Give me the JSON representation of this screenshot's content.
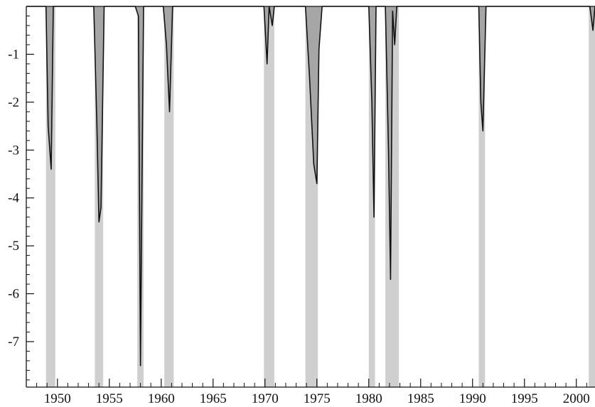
{
  "chart_data": {
    "type": "area",
    "title": "",
    "xlabel": "",
    "ylabel": "",
    "xlim": [
      1947.0,
      2001.8
    ],
    "ylim": [
      -7.95,
      0.0
    ],
    "x_ticks": [
      1950,
      1955,
      1960,
      1965,
      1970,
      1975,
      1980,
      1985,
      1990,
      1995,
      2000
    ],
    "y_ticks": [
      -1,
      -2,
      -3,
      -4,
      -5,
      -6,
      -7
    ],
    "grid": false,
    "legend": "none",
    "colors": {
      "line": "#111111",
      "fill": "#a6a6a6",
      "recession_band": "#cfcfcf",
      "axis": "#111111"
    },
    "recession_bands": [
      [
        1948.9,
        1949.8
      ],
      [
        1953.6,
        1954.4
      ],
      [
        1957.7,
        1958.3
      ],
      [
        1960.3,
        1961.2
      ],
      [
        1969.9,
        1970.9
      ],
      [
        1973.9,
        1975.1
      ],
      [
        1980.0,
        1980.6
      ],
      [
        1981.6,
        1982.9
      ],
      [
        1990.6,
        1991.2
      ],
      [
        2001.2,
        2001.8
      ]
    ],
    "series": [
      {
        "x": [
          1947.0,
          1948.9,
          1949.1,
          1949.4,
          1949.6,
          1950.0,
          1953.5,
          1953.8,
          1954.0,
          1954.2,
          1954.5,
          1957.5,
          1957.8,
          1958.0,
          1958.1,
          1958.3,
          1960.2,
          1960.5,
          1960.8,
          1961.1,
          1969.9,
          1970.2,
          1970.4,
          1970.7,
          1970.9,
          1971.2,
          1973.9,
          1974.3,
          1974.7,
          1975.0,
          1975.2,
          1975.5,
          1980.0,
          1980.3,
          1980.5,
          1980.7,
          1981.6,
          1981.9,
          1982.1,
          1982.3,
          1982.5,
          1982.7,
          1983.0,
          1990.6,
          1990.8,
          1991.0,
          1991.3,
          2001.3,
          2001.6,
          2001.8
        ],
        "values": [
          0.0,
          0.0,
          -2.5,
          -3.4,
          0.0,
          0.0,
          0.0,
          -2.5,
          -4.5,
          -4.2,
          0.0,
          0.0,
          -0.2,
          -7.5,
          -5.0,
          0.0,
          0.0,
          -0.8,
          -2.2,
          0.0,
          0.0,
          -1.2,
          0.0,
          -0.4,
          0.0,
          0.0,
          0.0,
          -1.5,
          -3.3,
          -3.7,
          -0.9,
          0.0,
          0.0,
          -2.0,
          -4.4,
          0.0,
          0.0,
          -3.0,
          -5.7,
          -0.1,
          -0.8,
          0.0,
          0.0,
          0.0,
          -2.0,
          -2.6,
          0.0,
          0.0,
          -0.5,
          0.0
        ]
      }
    ]
  }
}
